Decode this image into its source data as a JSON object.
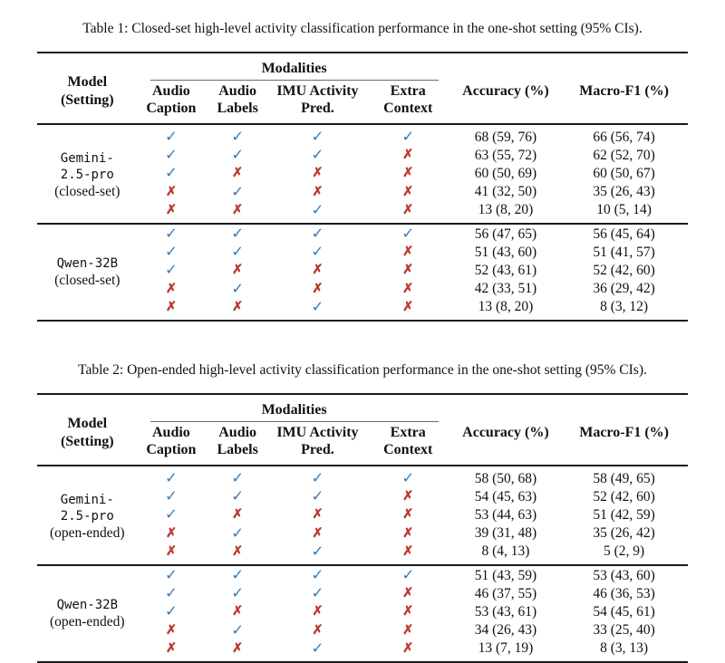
{
  "colors": {
    "check": "#3e7cb0",
    "cross": "#bb382d",
    "rule": "#1a1a1a"
  },
  "marks": {
    "check": "✓",
    "cross": "✗"
  },
  "header": {
    "model": [
      "Model",
      "(Setting)"
    ],
    "modalities": "Modalities",
    "columns": [
      [
        "Audio",
        "Caption"
      ],
      [
        "Audio",
        "Labels"
      ],
      [
        "IMU Activity",
        "Pred."
      ],
      [
        "Extra",
        "Context"
      ]
    ],
    "accuracy": "Accuracy (%)",
    "macro_f1": "Macro-F1 (%)"
  },
  "tables": [
    {
      "caption": "Table 1: Closed-set high-level activity classification performance in the one-shot setting (95% CIs).",
      "groups": [
        {
          "model_lines": [
            "Gemini-",
            "2.5-pro"
          ],
          "setting": "(closed-set)",
          "rows": [
            {
              "modalities": [
                true,
                true,
                true,
                true
              ],
              "accuracy": "68 (59, 76)",
              "macro_f1": "66 (56, 74)"
            },
            {
              "modalities": [
                true,
                true,
                true,
                false
              ],
              "accuracy": "63 (55, 72)",
              "macro_f1": "62 (52, 70)"
            },
            {
              "modalities": [
                true,
                false,
                false,
                false
              ],
              "accuracy": "60 (50, 69)",
              "macro_f1": "60 (50, 67)"
            },
            {
              "modalities": [
                false,
                true,
                false,
                false
              ],
              "accuracy": "41 (32, 50)",
              "macro_f1": "35 (26, 43)"
            },
            {
              "modalities": [
                false,
                false,
                true,
                false
              ],
              "accuracy": "13 (8, 20)",
              "macro_f1": "10 (5, 14)"
            }
          ]
        },
        {
          "model_lines": [
            "Qwen-32B"
          ],
          "setting": "(closed-set)",
          "rows": [
            {
              "modalities": [
                true,
                true,
                true,
                true
              ],
              "accuracy": "56 (47, 65)",
              "macro_f1": "56 (45, 64)"
            },
            {
              "modalities": [
                true,
                true,
                true,
                false
              ],
              "accuracy": "51 (43, 60)",
              "macro_f1": "51 (41, 57)"
            },
            {
              "modalities": [
                true,
                false,
                false,
                false
              ],
              "accuracy": "52 (43, 61)",
              "macro_f1": "52 (42, 60)"
            },
            {
              "modalities": [
                false,
                true,
                false,
                false
              ],
              "accuracy": "42 (33, 51)",
              "macro_f1": "36 (29, 42)"
            },
            {
              "modalities": [
                false,
                false,
                true,
                false
              ],
              "accuracy": "13 (8, 20)",
              "macro_f1": "8 (3, 12)"
            }
          ]
        }
      ]
    },
    {
      "caption": "Table 2: Open-ended high-level activity classification performance in the one-shot setting (95% CIs).",
      "groups": [
        {
          "model_lines": [
            "Gemini-",
            "2.5-pro"
          ],
          "setting": "(open-ended)",
          "rows": [
            {
              "modalities": [
                true,
                true,
                true,
                true
              ],
              "accuracy": "58 (50, 68)",
              "macro_f1": "58 (49, 65)"
            },
            {
              "modalities": [
                true,
                true,
                true,
                false
              ],
              "accuracy": "54 (45, 63)",
              "macro_f1": "52 (42, 60)"
            },
            {
              "modalities": [
                true,
                false,
                false,
                false
              ],
              "accuracy": "53 (44, 63)",
              "macro_f1": "51 (42, 59)"
            },
            {
              "modalities": [
                false,
                true,
                false,
                false
              ],
              "accuracy": "39 (31, 48)",
              "macro_f1": "35 (26, 42)"
            },
            {
              "modalities": [
                false,
                false,
                true,
                false
              ],
              "accuracy": "8 (4, 13)",
              "macro_f1": "5 (2, 9)"
            }
          ]
        },
        {
          "model_lines": [
            "Qwen-32B"
          ],
          "setting": "(open-ended)",
          "rows": [
            {
              "modalities": [
                true,
                true,
                true,
                true
              ],
              "accuracy": "51 (43, 59)",
              "macro_f1": "53 (43, 60)"
            },
            {
              "modalities": [
                true,
                true,
                true,
                false
              ],
              "accuracy": "46 (37, 55)",
              "macro_f1": "46 (36, 53)"
            },
            {
              "modalities": [
                true,
                false,
                false,
                false
              ],
              "accuracy": "53 (43, 61)",
              "macro_f1": "54 (45, 61)"
            },
            {
              "modalities": [
                false,
                true,
                false,
                false
              ],
              "accuracy": "34 (26, 43)",
              "macro_f1": "33 (25, 40)"
            },
            {
              "modalities": [
                false,
                false,
                true,
                false
              ],
              "accuracy": "13 (7, 19)",
              "macro_f1": "8 (3, 13)"
            }
          ]
        }
      ]
    }
  ]
}
